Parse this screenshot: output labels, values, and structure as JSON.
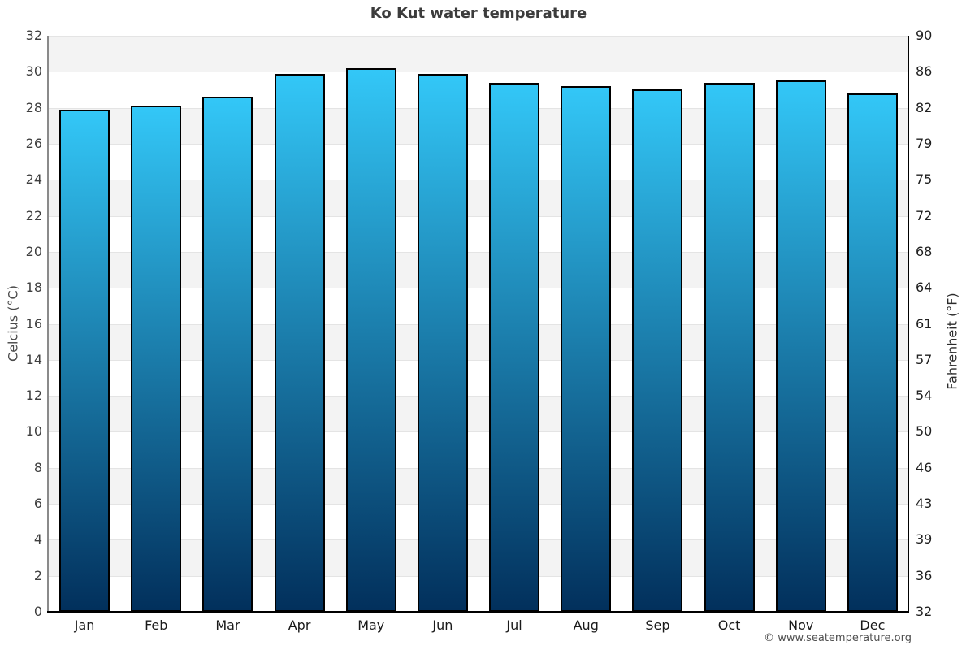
{
  "title": "Ko Kut water temperature",
  "footer_credit": "© www.seatemperature.org",
  "chart_data": {
    "type": "bar",
    "title": "Ko Kut water temperature",
    "categories": [
      "Jan",
      "Feb",
      "Mar",
      "Apr",
      "May",
      "Jun",
      "Jul",
      "Aug",
      "Sep",
      "Oct",
      "Nov",
      "Dec"
    ],
    "values": [
      27.9,
      28.1,
      28.6,
      29.9,
      30.2,
      29.9,
      29.4,
      29.2,
      29.0,
      29.4,
      29.5,
      28.8
    ],
    "ylabel_left": "Celcius (°C)",
    "ylabel_right": "Fahrenheit (°F)",
    "ylim": [
      0,
      32
    ],
    "ytick_step_celsius": 2,
    "yticks_celsius": [
      32,
      30,
      28,
      26,
      24,
      22,
      20,
      18,
      16,
      14,
      12,
      10,
      8,
      6,
      4,
      2,
      0
    ],
    "yticks_fahrenheit": [
      90,
      86,
      82,
      79,
      75,
      72,
      68,
      64,
      61,
      57,
      54,
      50,
      46,
      43,
      39,
      36,
      32
    ],
    "grid": "horizontal-bands",
    "legend": "none",
    "colors": {
      "bar_gradient_top": "#33c7f7",
      "bar_gradient_bottom": "#02305c",
      "bar_border": "#000000",
      "band_shaded": "#f3f3f3",
      "band_plain": "#ffffff",
      "gridline": "#e4e4e4",
      "axis_left_line": "#8a8a8a",
      "axis_bottom_line": "#000000",
      "title_text": "#3c3c3c",
      "tick_text": "#3f3f3f",
      "footer_text": "#4f4f4f"
    }
  }
}
